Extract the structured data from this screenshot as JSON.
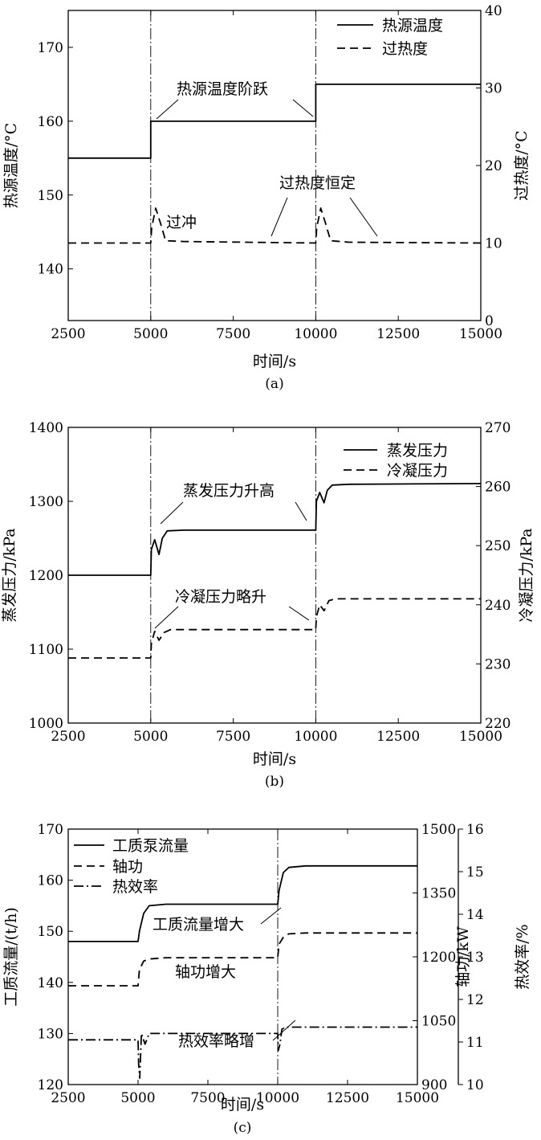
{
  "chart_data": [
    {
      "type": "line",
      "caption": "(a)",
      "xlabel": "时间/s",
      "ylabel": "热源温度/°C",
      "ylabel_right": "过热度/°C",
      "xlim": [
        2500,
        15000
      ],
      "ylim": [
        133,
        175
      ],
      "ylim_right": [
        0,
        40
      ],
      "xticks": [
        "2500",
        "5000",
        "7500",
        "10000",
        "12500",
        "15000"
      ],
      "yticks": [
        "140",
        "150",
        "160",
        "170"
      ],
      "yticks_right": [
        "0",
        "10",
        "20",
        "30",
        "40"
      ],
      "legend": [
        "热源温度",
        "过热度"
      ],
      "legend_position": "top-right",
      "grid": false,
      "vlines_x": [
        5000,
        10000
      ],
      "series": [
        {
          "name": "热源温度",
          "style": "solid",
          "axis": "left",
          "x": [
            2500,
            5000,
            5000,
            10000,
            10000,
            15000
          ],
          "y": [
            155,
            155,
            160,
            160,
            165,
            165
          ]
        },
        {
          "name": "过热度",
          "style": "dashed",
          "axis": "right",
          "x": [
            2500,
            5000,
            5030,
            5150,
            5300,
            5450,
            6000,
            10000,
            10030,
            10150,
            10300,
            10450,
            11000,
            15000
          ],
          "y": [
            10,
            10,
            12,
            14.5,
            12.5,
            10.3,
            10.2,
            10,
            12,
            14.5,
            12.5,
            10.3,
            10.1,
            10
          ]
        }
      ],
      "annotations": [
        "热源温度阶跃",
        "过冲",
        "过热度恒定"
      ]
    },
    {
      "type": "line",
      "caption": "(b)",
      "xlabel": "时间/s",
      "ylabel": "蒸发压力/kPa",
      "ylabel_right": "冷凝压力/kPa",
      "xlim": [
        2500,
        15000
      ],
      "ylim": [
        1000,
        1400
      ],
      "ylim_right": [
        220,
        270
      ],
      "xticks": [
        "2500",
        "5000",
        "7500",
        "10000",
        "12500",
        "15000"
      ],
      "yticks": [
        "1000",
        "1100",
        "1200",
        "1300",
        "1400"
      ],
      "yticks_right": [
        "220",
        "230",
        "240",
        "250",
        "260",
        "270"
      ],
      "legend": [
        "蒸发压力",
        "冷凝压力"
      ],
      "legend_position": "top-right",
      "grid": false,
      "vlines_x": [
        5000,
        10000
      ],
      "series": [
        {
          "name": "蒸发压力",
          "style": "solid",
          "axis": "left",
          "x": [
            2500,
            5000,
            5020,
            5120,
            5250,
            5350,
            5500,
            6000,
            10000,
            10020,
            10120,
            10250,
            10350,
            10500,
            11000,
            15000
          ],
          "y": [
            1200,
            1200,
            1235,
            1248,
            1228,
            1250,
            1260,
            1261,
            1261,
            1300,
            1312,
            1298,
            1315,
            1322,
            1323,
            1324
          ]
        },
        {
          "name": "冷凝压力",
          "style": "dashed",
          "axis": "right",
          "x": [
            2500,
            5000,
            5020,
            5120,
            5250,
            5400,
            5600,
            10000,
            10020,
            10120,
            10250,
            10400,
            10600,
            15000
          ],
          "y": [
            231,
            231,
            233.5,
            235.5,
            234,
            235.3,
            235.8,
            235.8,
            238,
            240,
            239,
            240.7,
            241,
            241
          ]
        }
      ],
      "annotations": [
        "蒸发压力升高",
        "冷凝压力略升"
      ]
    },
    {
      "type": "line",
      "caption": "(c)",
      "xlabel": "时间/s",
      "ylabel": "工质流量/(t/h)",
      "ylabel_right": "轴功/kW",
      "ylabel_right2": "热效率/%",
      "xlim": [
        2500,
        15000
      ],
      "ylim": [
        120,
        170
      ],
      "ylim_right": [
        900,
        1500
      ],
      "ylim_right2": [
        10,
        16
      ],
      "xticks": [
        "2500",
        "5000",
        "7500",
        "10000",
        "12500",
        "15000"
      ],
      "yticks": [
        "120",
        "130",
        "140",
        "150",
        "160",
        "170"
      ],
      "yticks_right": [
        "900",
        "1050",
        "1200",
        "1350",
        "1500"
      ],
      "yticks_right2": [
        "10",
        "11",
        "12",
        "13",
        "14",
        "15",
        "16"
      ],
      "legend": [
        "工质泵流量",
        "轴功",
        "热效率"
      ],
      "legend_position": "top-left",
      "grid": false,
      "vlines_x": [
        10000
      ],
      "series": [
        {
          "name": "工质泵流量",
          "style": "solid",
          "axis": "left",
          "x": [
            2500,
            5000,
            5050,
            5200,
            5400,
            6000,
            10000,
            10050,
            10200,
            10400,
            11000,
            15000
          ],
          "y": [
            148,
            148,
            150,
            153.5,
            155,
            155.3,
            155.3,
            158,
            161.5,
            162.5,
            162.8,
            162.8
          ]
        },
        {
          "name": "轴功",
          "style": "dashed",
          "axis": "right",
          "x": [
            2500,
            5000,
            5050,
            5200,
            5400,
            6000,
            10000,
            10050,
            10200,
            10400,
            11000,
            15000
          ],
          "y": [
            1132,
            1132,
            1170,
            1190,
            1195,
            1198,
            1198,
            1230,
            1246,
            1254,
            1256,
            1256
          ]
        },
        {
          "name": "热效率",
          "style": "dashdot",
          "axis": "right2",
          "x": [
            2500,
            5000,
            5020,
            5060,
            5120,
            5250,
            5400,
            6000,
            10000,
            10020,
            10080,
            10150,
            10300,
            10500,
            15000
          ],
          "y": [
            11.05,
            11.05,
            10.5,
            10.15,
            11.2,
            10.95,
            11.2,
            11.2,
            11.2,
            10.8,
            10.95,
            11.3,
            11.35,
            11.35,
            11.35
          ]
        }
      ],
      "annotations": [
        "工质流量增大",
        "轴功增大",
        "热效率略增"
      ]
    }
  ]
}
